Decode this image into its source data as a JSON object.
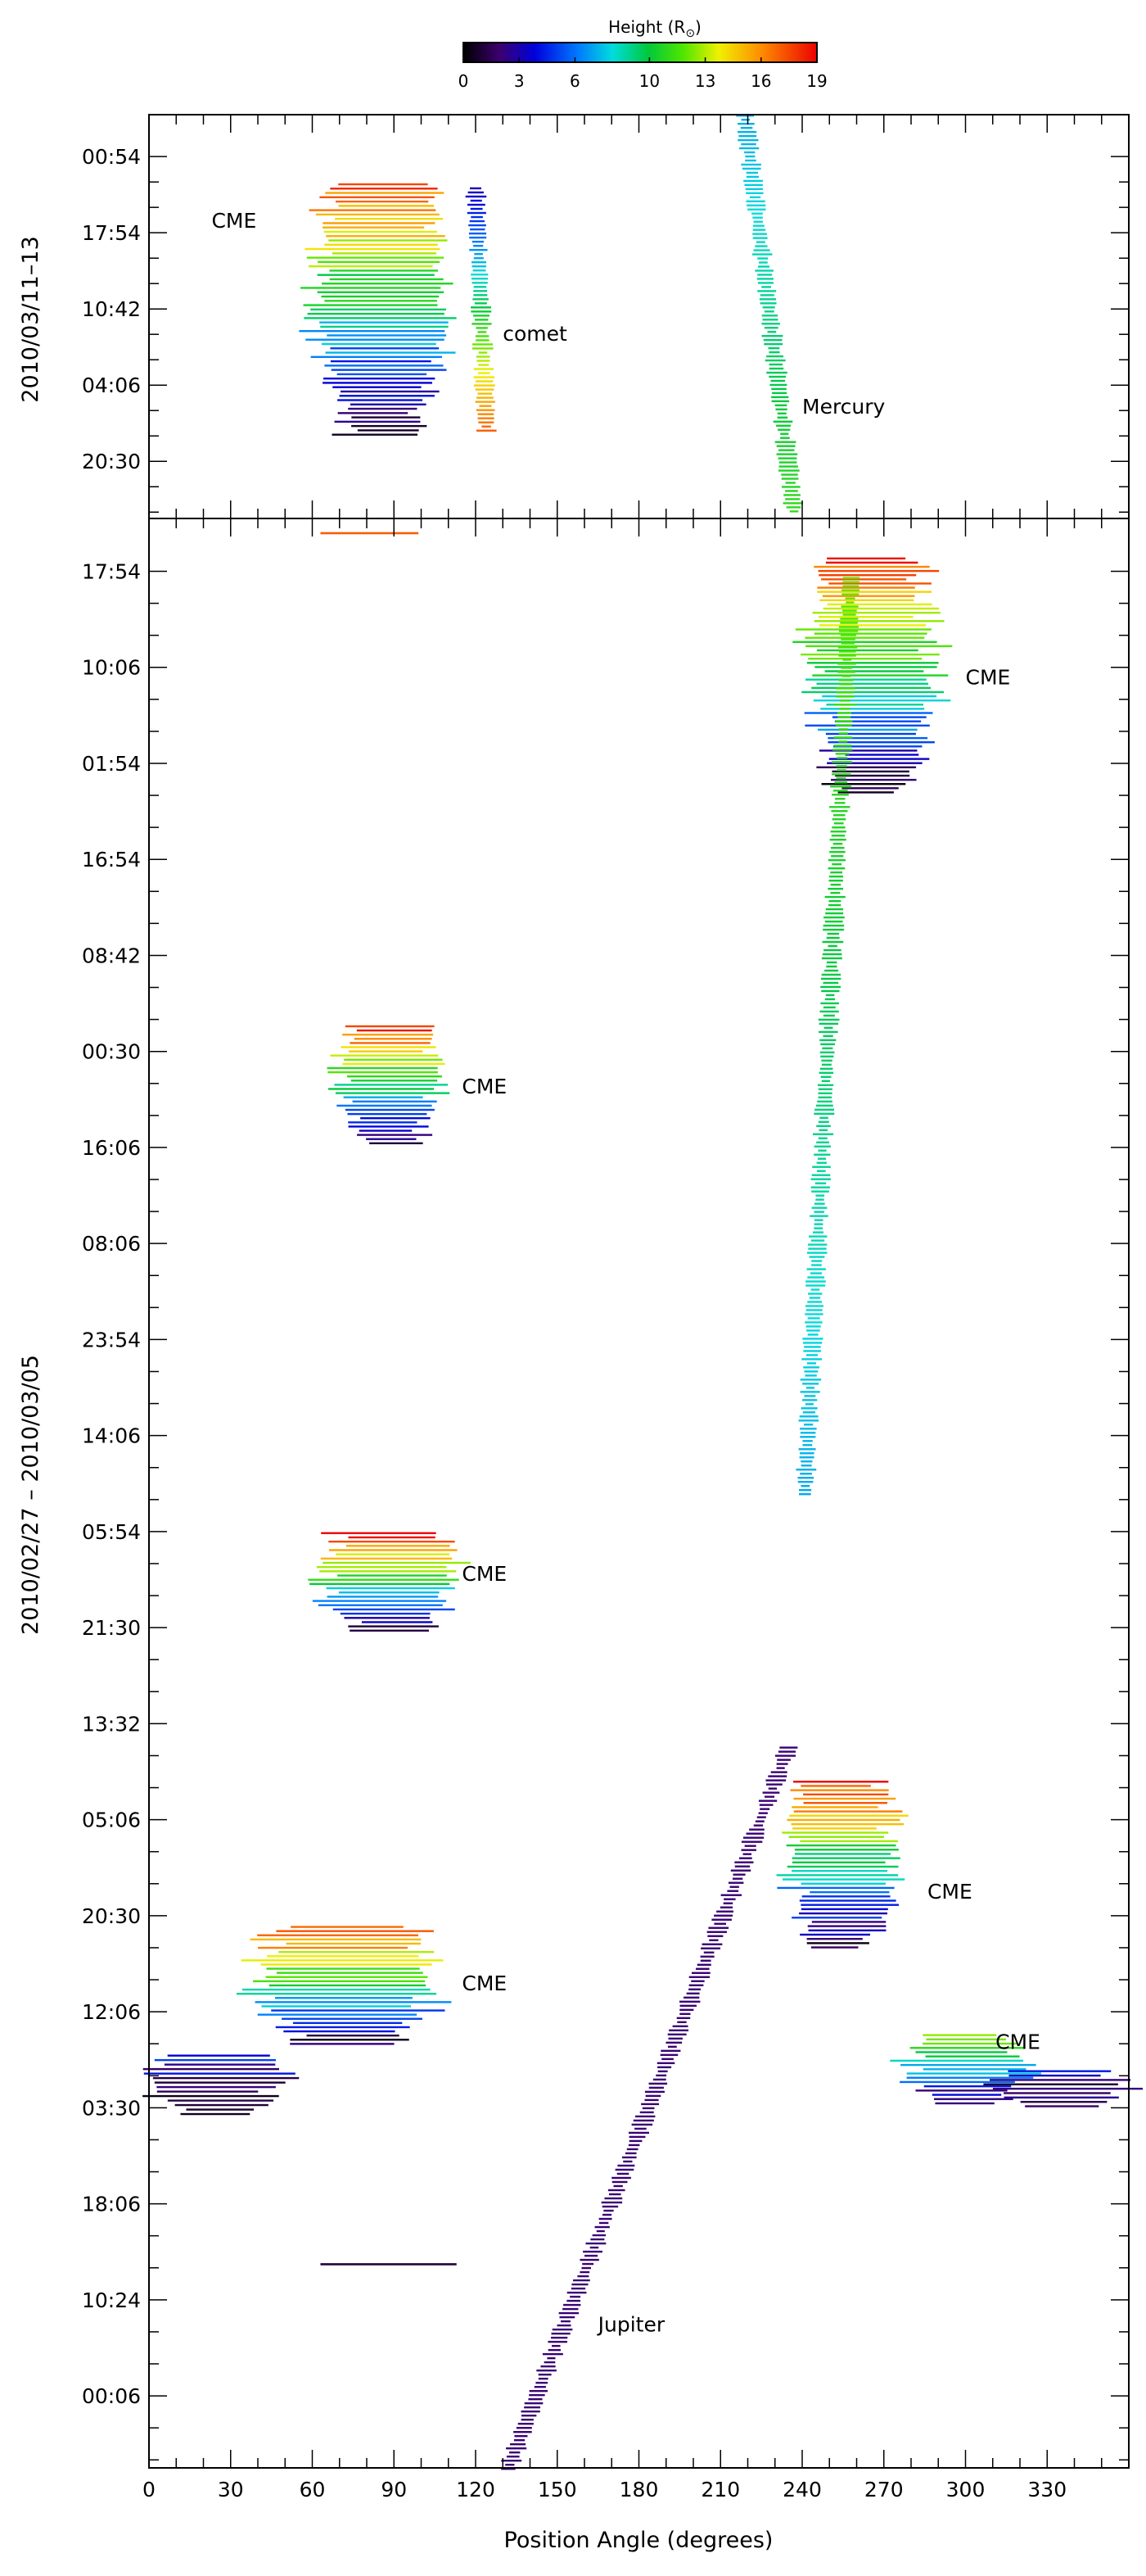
{
  "chart_data": {
    "type": "scatter",
    "colorbar": {
      "title": "Height (R",
      "title_subscript": "⊙",
      "title_close": ")",
      "ticks": [
        "0",
        "3",
        "6",
        "10",
        "13",
        "16",
        "19"
      ],
      "range": [
        0,
        19
      ],
      "colormap": "rainbow"
    },
    "xlabel": "Position Angle (degrees)",
    "x_ticks": [
      "0",
      "30",
      "60",
      "90",
      "120",
      "150",
      "180",
      "210",
      "240",
      "270",
      "300",
      "330"
    ],
    "xlim": [
      0,
      360
    ],
    "panels": [
      {
        "ylabel": "2010/03/11–13",
        "y_ticks": [
          "00:54",
          "17:54",
          "10:42",
          "04:06",
          "20:30"
        ],
        "annotations": [
          {
            "text": "CME",
            "x": 23,
            "y": 0.72
          },
          {
            "text": "comet",
            "x": 130,
            "y": 0.44
          },
          {
            "text": "Mercury",
            "x": 240,
            "y": 0.26
          }
        ],
        "features": [
          {
            "kind": "blob",
            "x_center": 85,
            "x_width": 50,
            "y_center": 0.52,
            "y_height": 0.62,
            "h_top": 17,
            "h_bottom": 1
          },
          {
            "kind": "track",
            "name": "comet",
            "x_start": 120,
            "x_end": 124,
            "y_start": 0.82,
            "y_end": 0.22,
            "h_start": 3,
            "h_end": 17
          },
          {
            "kind": "track",
            "name": "Mercury",
            "x_start": 219,
            "x_end": 237,
            "y_start": 1.0,
            "y_end": 0.02,
            "h_start": 7,
            "h_end": 11
          }
        ]
      },
      {
        "ylabel": "2010/02/27 – 2010/03/05",
        "y_ticks": [
          "17:54",
          "10:06",
          "01:54",
          "16:54",
          "08:42",
          "00:30",
          "16:06",
          "08:06",
          "23:54",
          "14:06",
          "05:54",
          "21:30",
          "13:32",
          "05:06",
          "20:30",
          "12:06",
          "03:30",
          "18:06",
          "10:24",
          "00:06"
        ],
        "annotations": [
          {
            "text": "CME",
            "x": 300,
            "y": 0.915
          },
          {
            "text": "CME",
            "x": 115,
            "y": 0.705
          },
          {
            "text": "CME",
            "x": 115,
            "y": 0.455
          },
          {
            "text": "CME",
            "x": 286,
            "y": 0.292
          },
          {
            "text": "CME",
            "x": 115,
            "y": 0.245
          },
          {
            "text": "CME",
            "x": 311,
            "y": 0.215
          },
          {
            "text": "Jupiter",
            "x": 165,
            "y": 0.07
          }
        ],
        "features": [
          {
            "kind": "blob",
            "x_center": 266,
            "x_width": 48,
            "y_center": 0.92,
            "y_height": 0.12,
            "h_top": 18,
            "h_bottom": 1
          },
          {
            "kind": "blob",
            "x_center": 88,
            "x_width": 38,
            "y_center": 0.71,
            "y_height": 0.06,
            "h_top": 18,
            "h_bottom": 1
          },
          {
            "kind": "blob",
            "x_center": 88,
            "x_width": 50,
            "y_center": 0.455,
            "y_height": 0.05,
            "h_top": 18,
            "h_bottom": 1
          },
          {
            "kind": "blob",
            "x_center": 255,
            "x_width": 42,
            "y_center": 0.31,
            "y_height": 0.085,
            "h_top": 18,
            "h_bottom": 1
          },
          {
            "kind": "blob",
            "x_center": 72,
            "x_width": 70,
            "y_center": 0.248,
            "y_height": 0.06,
            "h_top": 18,
            "h_bottom": 1
          },
          {
            "kind": "blob",
            "x_center": 300,
            "x_width": 45,
            "y_center": 0.205,
            "y_height": 0.035,
            "h_top": 14,
            "h_bottom": 1
          },
          {
            "kind": "blob",
            "x_center": 25,
            "x_width": 50,
            "y_center": 0.197,
            "y_height": 0.03,
            "h_top": 4,
            "h_bottom": 0
          },
          {
            "kind": "blob",
            "x_center": 335,
            "x_width": 50,
            "y_center": 0.195,
            "y_height": 0.018,
            "h_top": 3,
            "h_bottom": 1
          },
          {
            "kind": "track",
            "name": "Jupiter",
            "x_start": 132,
            "x_end": 235,
            "y_start": 0.0,
            "y_end": 0.37,
            "h_start": 2,
            "h_end": 2
          },
          {
            "kind": "track",
            "name": "planet",
            "x_start": 241,
            "x_end": 258,
            "y_start": 0.5,
            "y_end": 0.97,
            "h_start": 7,
            "h_end": 12
          },
          {
            "kind": "line",
            "x_start": 63,
            "x_end": 113,
            "y": 0.105,
            "h": 1
          },
          {
            "kind": "line",
            "x_start": 63,
            "x_end": 99,
            "y": 0.993,
            "h": 17
          }
        ]
      }
    ]
  }
}
